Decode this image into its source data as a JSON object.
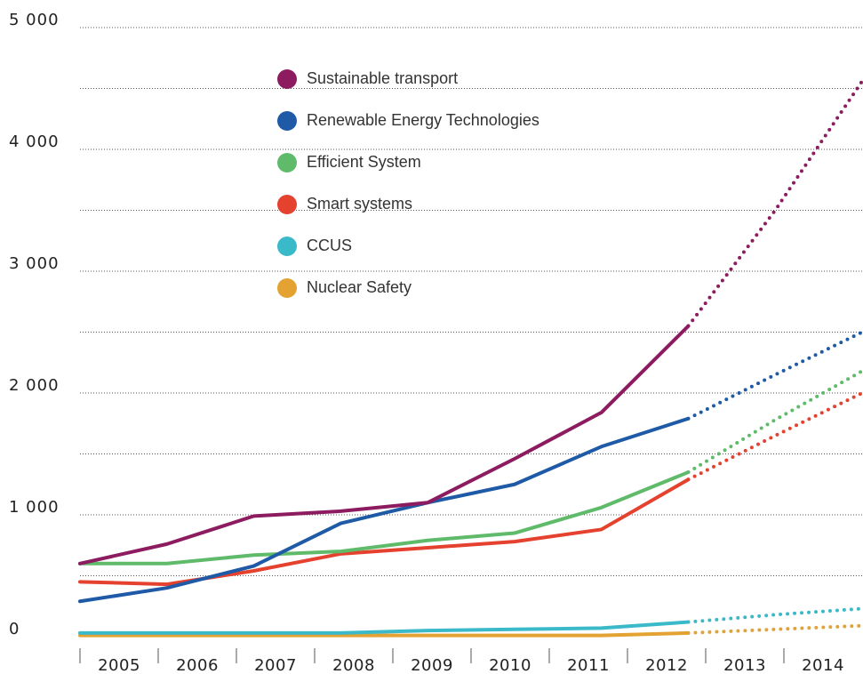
{
  "chart_data": {
    "type": "line",
    "categories": [
      "2005",
      "2006",
      "2007",
      "2008",
      "2009",
      "2010",
      "2011",
      "2012",
      "2013",
      "2014"
    ],
    "series": [
      {
        "name": "Sustainable transport",
        "color": "#8c1c5f",
        "values": [
          600,
          760,
          990,
          1030,
          1100,
          1460,
          1840,
          2550,
          3500,
          4560
        ]
      },
      {
        "name": "Renewable Energy Technologies",
        "color": "#1f5aa6",
        "values": [
          290,
          400,
          580,
          930,
          1100,
          1250,
          1560,
          1790,
          2150,
          2500
        ]
      },
      {
        "name": "Efficient System",
        "color": "#5fbb6a",
        "values": [
          600,
          600,
          670,
          700,
          790,
          850,
          1060,
          1350,
          1780,
          2180
        ]
      },
      {
        "name": "Smart systems",
        "color": "#e5412f",
        "values": [
          450,
          430,
          540,
          680,
          730,
          780,
          880,
          1290,
          1650,
          2000
        ]
      },
      {
        "name": "CCUS",
        "color": "#3ab9c9",
        "values": [
          30,
          30,
          30,
          30,
          50,
          60,
          70,
          120,
          180,
          230
        ]
      },
      {
        "name": "Nuclear Safety",
        "color": "#e3a232",
        "values": [
          10,
          10,
          10,
          10,
          10,
          10,
          10,
          30,
          60,
          90
        ]
      }
    ],
    "dotted_from": 7,
    "ylim": [
      0,
      5000
    ],
    "yticks": [
      {
        "value": 0,
        "label": "0"
      },
      {
        "value": 1000,
        "label": "1 000"
      },
      {
        "value": 2000,
        "label": "2 000"
      },
      {
        "value": 3000,
        "label": "3 000"
      },
      {
        "value": 4000,
        "label": "4 000"
      },
      {
        "value": 5000,
        "label": "5 000"
      }
    ],
    "minor_yticks": [
      500,
      1500,
      2500,
      3500,
      4500
    ],
    "grid": true
  }
}
